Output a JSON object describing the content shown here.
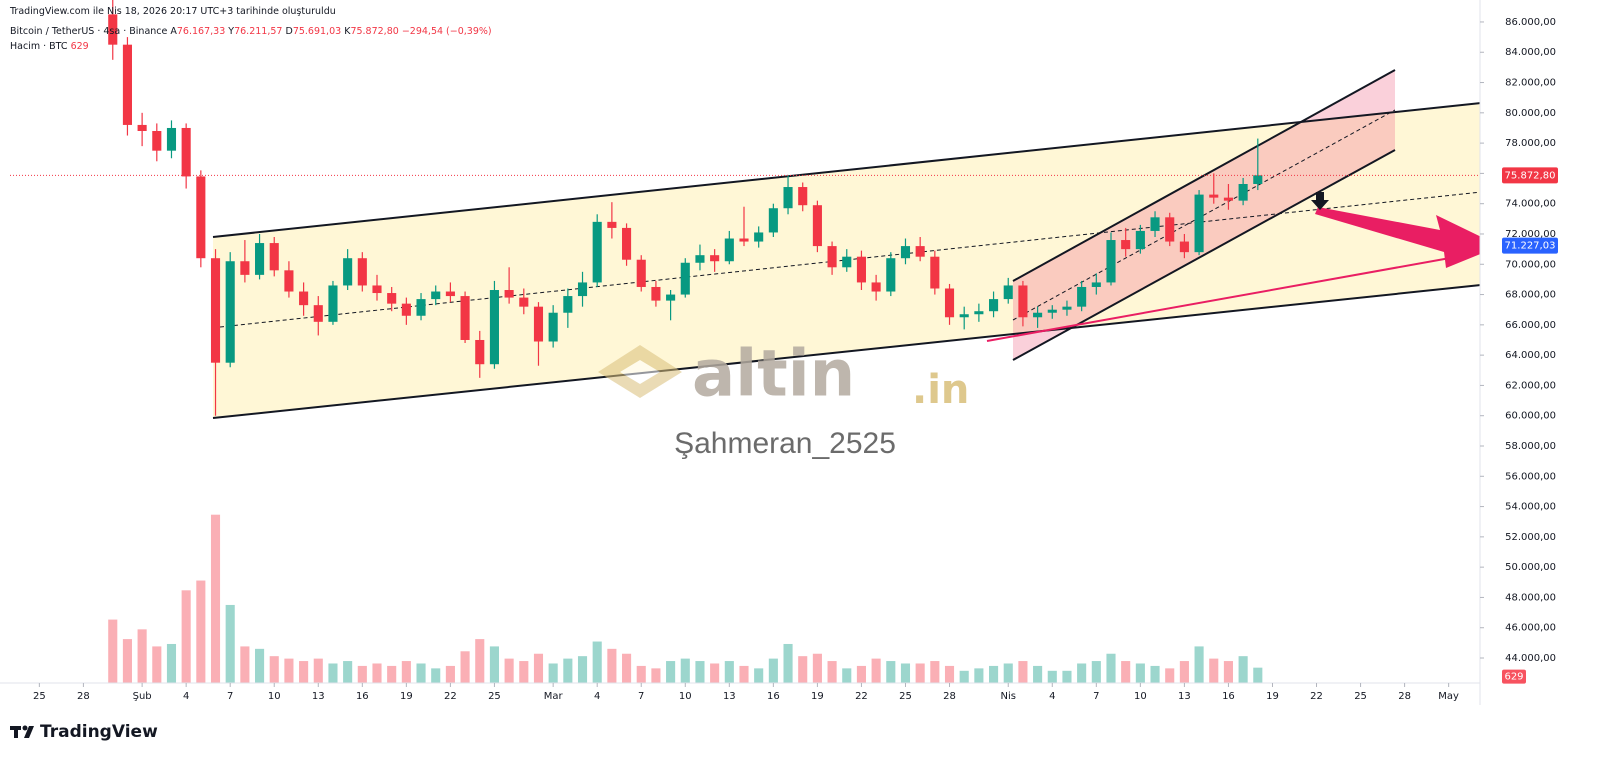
{
  "header": {
    "created": "TradingView.com ile Nis 18, 2026 20:17 UTC+3 tarihinde oluşturuldu",
    "logo": "TradingView",
    "watermark": "altin",
    "watermark_suffix": ".in",
    "author": "Şahmeran_2525"
  },
  "chart_data": {
    "type": "candlestick",
    "symbol": "Bitcoin / TetherUS · 4sa · Binance",
    "ohlc_legend": [
      {
        "key": "A",
        "value": "76.167,33"
      },
      {
        "key": "Y",
        "value": "76.211,57"
      },
      {
        "key": "D",
        "value": "75.691,03"
      },
      {
        "key": "K",
        "value": "75.872,80"
      }
    ],
    "change": "−294,54 (−0,39%)",
    "volume_title": "Hacim · BTC",
    "up_color": "#089981",
    "down_color": "#f23645",
    "x": [
      "2026-01-30",
      "2026-01-31",
      "2026-02-01",
      "2026-02-02",
      "2026-02-03",
      "2026-02-04",
      "2026-02-05",
      "2026-02-06",
      "2026-02-07",
      "2026-02-08",
      "2026-02-09",
      "2026-02-10",
      "2026-02-11",
      "2026-02-12",
      "2026-02-13",
      "2026-02-14",
      "2026-02-15",
      "2026-02-16",
      "2026-02-17",
      "2026-02-18",
      "2026-02-19",
      "2026-02-20",
      "2026-02-21",
      "2026-02-22",
      "2026-02-23",
      "2026-02-24",
      "2026-02-25",
      "2026-02-26",
      "2026-02-27",
      "2026-02-28",
      "2026-03-01",
      "2026-03-02",
      "2026-03-03",
      "2026-03-04",
      "2026-03-05",
      "2026-03-06",
      "2026-03-07",
      "2026-03-08",
      "2026-03-09",
      "2026-03-10",
      "2026-03-11",
      "2026-03-12",
      "2026-03-13",
      "2026-03-14",
      "2026-03-15",
      "2026-03-16",
      "2026-03-17",
      "2026-03-18",
      "2026-03-19",
      "2026-03-20",
      "2026-03-21",
      "2026-03-22",
      "2026-03-23",
      "2026-03-24",
      "2026-03-25",
      "2026-03-26",
      "2026-03-27",
      "2026-03-28",
      "2026-03-29",
      "2026-03-30",
      "2026-03-31",
      "2026-04-01",
      "2026-04-02",
      "2026-04-03",
      "2026-04-04",
      "2026-04-05",
      "2026-04-06",
      "2026-04-07",
      "2026-04-08",
      "2026-04-09",
      "2026-04-10",
      "2026-04-11",
      "2026-04-12",
      "2026-04-13",
      "2026-04-14",
      "2026-04-15",
      "2026-04-16",
      "2026-04-17",
      "2026-04-18"
    ],
    "open": [
      86500,
      84500,
      79200,
      78800,
      77500,
      79000,
      75800,
      70400,
      63500,
      70200,
      69300,
      71400,
      69600,
      68200,
      67300,
      66200,
      68600,
      70400,
      68600,
      68100,
      67400,
      66600,
      67700,
      68200,
      67900,
      65000,
      63400,
      68300,
      67800,
      67200,
      64900,
      66800,
      67900,
      68800,
      72800,
      72400,
      70300,
      68500,
      67600,
      68000,
      70100,
      70600,
      70200,
      71700,
      71500,
      72100,
      73700,
      75100,
      73900,
      71200,
      69800,
      70500,
      68800,
      68200,
      70400,
      71200,
      70500,
      68400,
      66500,
      66700,
      66900,
      67700,
      68600,
      66500,
      66800,
      67000,
      67200,
      68500,
      68800,
      71600,
      71000,
      72200,
      73100,
      71500,
      70800,
      74600,
      74400,
      74200,
      75300
    ],
    "high": [
      88000,
      85000,
      80000,
      79300,
      79500,
      79300,
      76200,
      71000,
      70800,
      71600,
      72000,
      71800,
      70200,
      68800,
      67900,
      68900,
      71000,
      70800,
      69300,
      68500,
      67800,
      68100,
      68600,
      68800,
      68200,
      65600,
      68900,
      69800,
      68400,
      67500,
      67300,
      68400,
      69500,
      73300,
      74100,
      72700,
      70600,
      68900,
      68300,
      70400,
      71300,
      71000,
      72200,
      73800,
      72500,
      74000,
      75900,
      75400,
      74200,
      71500,
      71000,
      70900,
      69300,
      70800,
      71700,
      71800,
      70900,
      68700,
      67200,
      67400,
      68200,
      69100,
      68900,
      67200,
      67300,
      67600,
      68900,
      69400,
      72100,
      72400,
      72600,
      73500,
      73400,
      72000,
      74900,
      76000,
      75300,
      75700,
      78300
    ],
    "low": [
      83500,
      78500,
      77800,
      76800,
      77000,
      75000,
      69800,
      60000,
      63200,
      68800,
      69000,
      69200,
      67800,
      66600,
      65300,
      66000,
      68300,
      68200,
      67600,
      66900,
      66000,
      66300,
      67300,
      67500,
      64800,
      62500,
      63100,
      67400,
      66700,
      63300,
      64500,
      65800,
      67200,
      68500,
      71700,
      69900,
      68200,
      67200,
      66300,
      67800,
      69600,
      69500,
      70000,
      71200,
      71100,
      71800,
      73300,
      73500,
      70800,
      69300,
      69500,
      68300,
      67600,
      67900,
      70000,
      70200,
      68000,
      66000,
      65700,
      66200,
      66500,
      67400,
      65900,
      65800,
      66400,
      66600,
      66900,
      68000,
      68600,
      70500,
      70700,
      71800,
      71200,
      70400,
      70600,
      74000,
      73600,
      73900,
      74900
    ],
    "close": [
      84500,
      79200,
      78800,
      77500,
      79000,
      75800,
      70400,
      63500,
      70200,
      69300,
      71400,
      69600,
      68200,
      67300,
      66200,
      68600,
      70400,
      68600,
      68100,
      67400,
      66600,
      67700,
      68200,
      67900,
      65000,
      63400,
      68300,
      67800,
      67200,
      64900,
      66800,
      67900,
      68800,
      72800,
      72400,
      70300,
      68500,
      67600,
      68000,
      70100,
      70600,
      70200,
      71700,
      71500,
      72100,
      73700,
      75100,
      73900,
      71200,
      69800,
      70500,
      68800,
      68200,
      70400,
      71200,
      70500,
      68400,
      66500,
      66700,
      66900,
      67700,
      68600,
      66500,
      66800,
      67000,
      67200,
      68500,
      68800,
      71600,
      71000,
      72200,
      73100,
      71500,
      70800,
      74600,
      74400,
      74200,
      75300,
      75872.8
    ],
    "volume": {
      "values": [
        2600,
        1800,
        2200,
        1500,
        1600,
        3800,
        4200,
        6900,
        3200,
        1500,
        1400,
        1100,
        1000,
        900,
        1000,
        800,
        900,
        700,
        800,
        700,
        900,
        800,
        600,
        700,
        1300,
        1800,
        1500,
        1000,
        900,
        1200,
        800,
        1000,
        1100,
        1700,
        1400,
        1200,
        700,
        600,
        900,
        1000,
        900,
        800,
        900,
        700,
        600,
        1000,
        1600,
        1100,
        1200,
        900,
        600,
        700,
        1000,
        900,
        800,
        800,
        900,
        700,
        500,
        600,
        700,
        800,
        900,
        700,
        500,
        500,
        800,
        900,
        1200,
        900,
        800,
        700,
        600,
        900,
        1500,
        1000,
        900,
        1100,
        629
      ],
      "ylim": [
        0,
        28000
      ]
    },
    "last_price": {
      "value": 75872.8,
      "label": "75.872,80"
    },
    "target_price": {
      "value": 71227.03,
      "label": "71.227,03"
    },
    "xlim": [
      "2026-01-23",
      "2026-05-03"
    ],
    "xticks": [
      {
        "value": "2026-01-25",
        "label": "25"
      },
      {
        "value": "2026-01-28",
        "label": "28"
      },
      {
        "value": "2026-02-01",
        "label": "Şub"
      },
      {
        "value": "2026-02-04",
        "label": "4"
      },
      {
        "value": "2026-02-07",
        "label": "7"
      },
      {
        "value": "2026-02-10",
        "label": "10"
      },
      {
        "value": "2026-02-13",
        "label": "13"
      },
      {
        "value": "2026-02-16",
        "label": "16"
      },
      {
        "value": "2026-02-19",
        "label": "19"
      },
      {
        "value": "2026-02-22",
        "label": "22"
      },
      {
        "value": "2026-02-25",
        "label": "25"
      },
      {
        "value": "2026-03-01",
        "label": "Mar"
      },
      {
        "value": "2026-03-04",
        "label": "4"
      },
      {
        "value": "2026-03-07",
        "label": "7"
      },
      {
        "value": "2026-03-10",
        "label": "10"
      },
      {
        "value": "2026-03-13",
        "label": "13"
      },
      {
        "value": "2026-03-16",
        "label": "16"
      },
      {
        "value": "2026-03-19",
        "label": "19"
      },
      {
        "value": "2026-03-22",
        "label": "22"
      },
      {
        "value": "2026-03-25",
        "label": "25"
      },
      {
        "value": "2026-03-28",
        "label": "28"
      },
      {
        "value": "2026-04-01",
        "label": "Nis"
      },
      {
        "value": "2026-04-04",
        "label": "4"
      },
      {
        "value": "2026-04-07",
        "label": "7"
      },
      {
        "value": "2026-04-10",
        "label": "10"
      },
      {
        "value": "2026-04-13",
        "label": "13"
      },
      {
        "value": "2026-04-16",
        "label": "16"
      },
      {
        "value": "2026-04-19",
        "label": "19"
      },
      {
        "value": "2026-04-22",
        "label": "22"
      },
      {
        "value": "2026-04-25",
        "label": "25"
      },
      {
        "value": "2026-04-28",
        "label": "28"
      },
      {
        "value": "2026-05-01",
        "label": "May"
      }
    ],
    "ylim": [
      42350,
      87450
    ],
    "yticks": [
      {
        "value": 44000,
        "label": "44.000,00"
      },
      {
        "value": 46000,
        "label": "46.000,00"
      },
      {
        "value": 48000,
        "label": "48.000,00"
      },
      {
        "value": 50000,
        "label": "50.000,00"
      },
      {
        "value": 52000,
        "label": "52.000,00"
      },
      {
        "value": 54000,
        "label": "54.000,00"
      },
      {
        "value": 56000,
        "label": "56.000,00"
      },
      {
        "value": 58000,
        "label": "58.000,00"
      },
      {
        "value": 60000,
        "label": "60.000,00"
      },
      {
        "value": 62000,
        "label": "62.000,00"
      },
      {
        "value": 64000,
        "label": "64.000,00"
      },
      {
        "value": 66000,
        "label": "66.000,00"
      },
      {
        "value": 68000,
        "label": "68.000,00"
      },
      {
        "value": 70000,
        "label": "70.000,00"
      },
      {
        "value": 72000,
        "label": "72.000,00"
      },
      {
        "value": 74000,
        "label": "74.000,00"
      },
      {
        "value": 76000,
        "label": "76.000,00"
      },
      {
        "value": 78000,
        "label": "78.000,00"
      },
      {
        "value": 80000,
        "label": "80.000,00"
      },
      {
        "value": 82000,
        "label": "82.000,00"
      },
      {
        "value": 84000,
        "label": "84.000,00"
      },
      {
        "value": 86000,
        "label": "86.000,00"
      }
    ],
    "grid": false
  }
}
